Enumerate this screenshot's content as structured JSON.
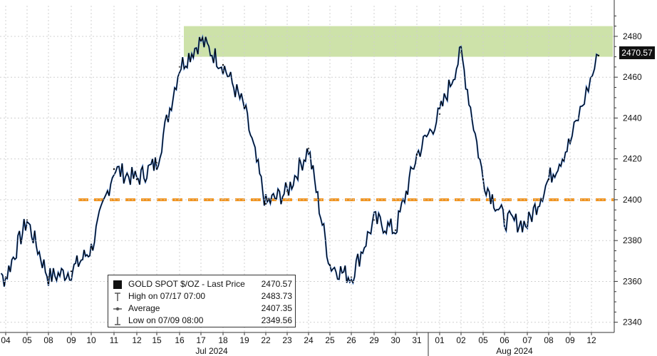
{
  "chart_data": {
    "type": "line",
    "title": "",
    "xlabel": "",
    "ylabel": "",
    "ylim": [
      2335,
      2495
    ],
    "y_ticks": [
      2340,
      2360,
      2380,
      2400,
      2420,
      2440,
      2460,
      2480
    ],
    "x_tick_labels": [
      "04",
      "05",
      "08",
      "09",
      "10",
      "11",
      "12",
      "15",
      "16",
      "17",
      "18",
      "19",
      "22",
      "23",
      "24",
      "25",
      "26",
      "29",
      "30",
      "31",
      "01",
      "02",
      "05",
      "06",
      "07",
      "08",
      "09",
      "12"
    ],
    "month_labels": [
      "Jul 2024",
      "Aug 2024"
    ],
    "series": [
      {
        "name": "GOLD SPOT $/OZ - Last Price",
        "color": "#000000",
        "x": [
          "07/03",
          "07/04",
          "07/05",
          "07/08",
          "07/09",
          "07/10",
          "07/11",
          "07/12",
          "07/15",
          "07/16",
          "07/17",
          "07/18",
          "07/19",
          "07/22",
          "07/23",
          "07/24",
          "07/25",
          "07/26",
          "07/29",
          "07/30",
          "07/31",
          "08/01",
          "08/02",
          "08/05",
          "08/06",
          "08/07",
          "08/08",
          "08/09",
          "08/12"
        ],
        "values": [
          2358,
          2362,
          2390,
          2362,
          2365,
          2376,
          2415,
          2410,
          2418,
          2465,
          2478,
          2466,
          2445,
          2398,
          2404,
          2425,
          2368,
          2362,
          2390,
          2385,
          2422,
          2442,
          2472,
          2410,
          2390,
          2388,
          2410,
          2428,
          2470.57
        ]
      }
    ],
    "annotations": {
      "resistance_band": [
        2470,
        2485
      ],
      "support_line": 2400,
      "last_price_label": "2470.57"
    }
  },
  "legend": {
    "rows": [
      {
        "label": "GOLD SPOT $/OZ - Last Price",
        "value": "2470.57"
      },
      {
        "label": "High on 07/17 07:00",
        "value": "2483.73"
      },
      {
        "label": "Average",
        "value": "2407.35"
      },
      {
        "label": "Low on 07/09 08:00",
        "value": "2349.56"
      }
    ]
  },
  "colors": {
    "price_line": "#000000",
    "highlight_line": "#2a6fd6",
    "resistance_band": "#c8dfa0",
    "support_line": "#f2941e"
  }
}
